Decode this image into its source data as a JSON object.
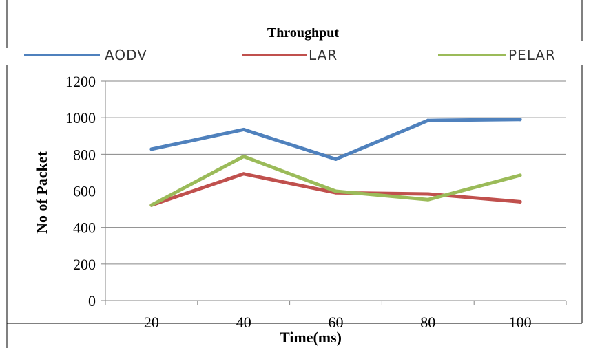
{
  "chart_data": {
    "type": "line",
    "title": "Throughput",
    "xlabel": "Time(ms)",
    "ylabel": "No of Packet",
    "categories": [
      "20",
      "40",
      "60",
      "80",
      "100"
    ],
    "ylim": [
      0,
      1200
    ],
    "yticks": [
      "0",
      "200",
      "400",
      "600",
      "800",
      "1000",
      "1200"
    ],
    "grid": true,
    "legend_position": "top",
    "series": [
      {
        "name": "AODV",
        "color": "#4F81BD",
        "values": [
          828,
          935,
          773,
          985,
          990
        ]
      },
      {
        "name": "LAR",
        "color": "#C0504D",
        "values": [
          522,
          693,
          590,
          583,
          540
        ]
      },
      {
        "name": "PELAR",
        "color": "#9BBB59",
        "values": [
          522,
          788,
          598,
          552,
          685
        ]
      }
    ]
  }
}
